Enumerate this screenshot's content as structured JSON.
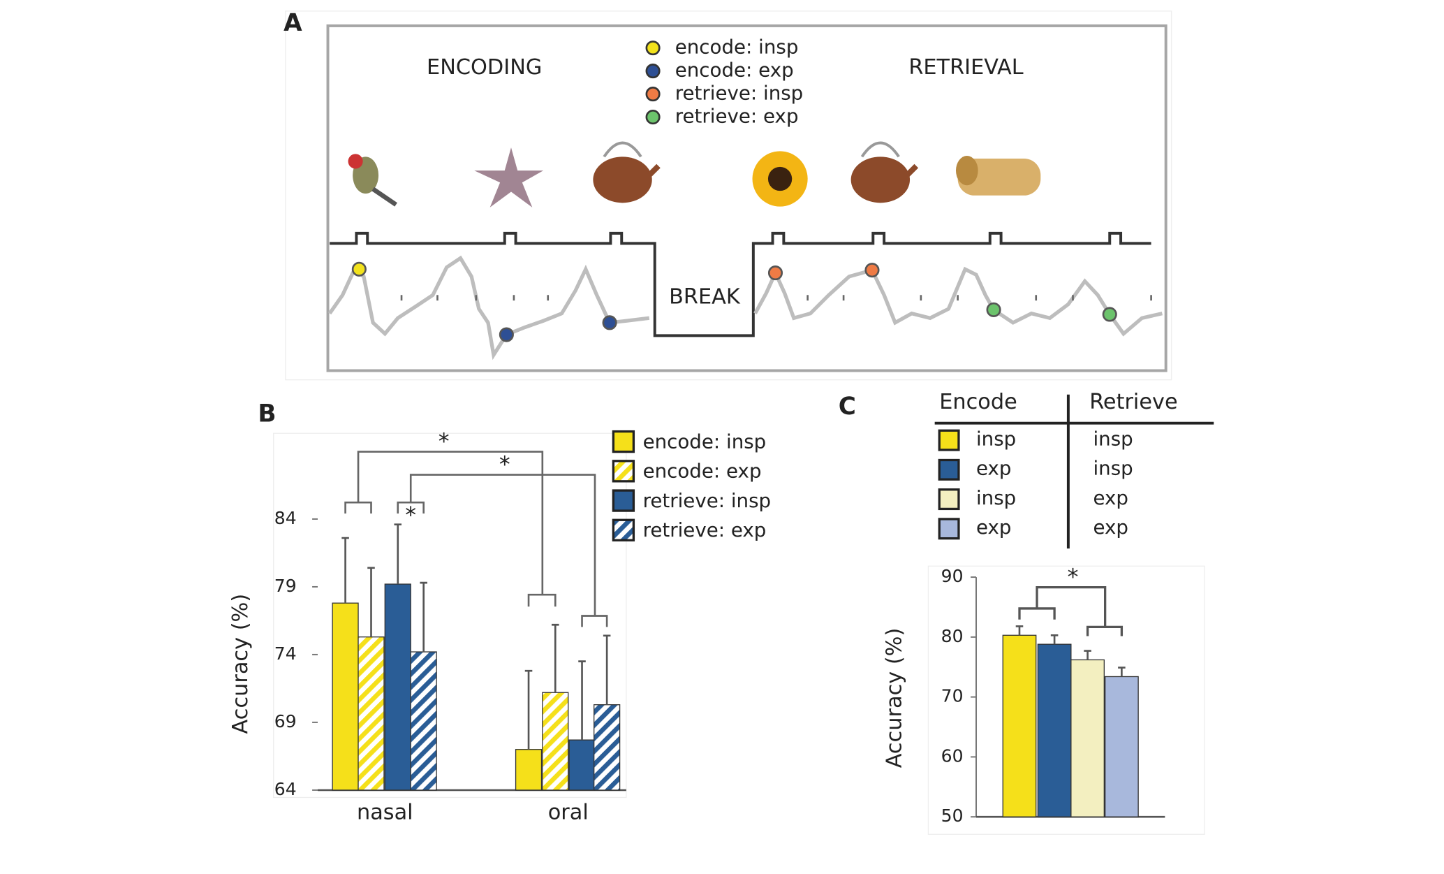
{
  "panel_a": {
    "label": "A",
    "phases": [
      "ENCODING",
      "RETRIEVAL"
    ],
    "break_label": "BREAK",
    "legend": [
      {
        "label": "encode: insp",
        "color": "#f2e21c"
      },
      {
        "label": "encode: exp",
        "color": "#2e4f94"
      },
      {
        "label": "retrieve: insp",
        "color": "#ef7b45"
      },
      {
        "label": "retrieve: exp",
        "color": "#6cc36c"
      }
    ]
  },
  "chart_data": [
    {
      "type": "bar",
      "panel_label": "B",
      "y_label": "Accuracy (%)",
      "categories": [
        "nasal",
        "oral"
      ],
      "ylim": [
        64,
        90
      ],
      "yticks": [
        64,
        69,
        74,
        79,
        84
      ],
      "annotations": [
        "*",
        "*",
        "*"
      ],
      "series": [
        {
          "name": "encode: insp",
          "color": "#f5e01a",
          "hatch": false,
          "values": [
            77.8,
            67.0
          ],
          "errors": [
            4.8,
            5.8
          ]
        },
        {
          "name": "encode: exp",
          "color": "#f5e01a",
          "hatch": true,
          "values": [
            75.3,
            71.2
          ],
          "errors": [
            5.1,
            5.0
          ]
        },
        {
          "name": "retrieve: insp",
          "color": "#2a5d96",
          "hatch": false,
          "values": [
            79.2,
            67.7
          ],
          "errors": [
            4.4,
            5.8
          ]
        },
        {
          "name": "retrieve: exp",
          "color": "#2a5d96",
          "hatch": true,
          "values": [
            74.2,
            70.3
          ],
          "errors": [
            5.1,
            5.1
          ]
        }
      ]
    },
    {
      "type": "bar",
      "panel_label": "C",
      "y_label": "Accuracy (%)",
      "categories": [
        null
      ],
      "ylim": [
        50,
        90
      ],
      "yticks": [
        50,
        60,
        70,
        80,
        90
      ],
      "annotations": [
        "*"
      ],
      "legend_table": {
        "headers": [
          "Encode",
          "Retrieve"
        ],
        "rows": [
          [
            "insp",
            "insp"
          ],
          [
            "exp",
            "insp"
          ],
          [
            "insp",
            "exp"
          ],
          [
            "exp",
            "exp"
          ]
        ]
      },
      "series": [
        {
          "color": "#f5e01a",
          "values": [
            80.3
          ],
          "errors": [
            1.5
          ]
        },
        {
          "color": "#2a5d96",
          "values": [
            78.8
          ],
          "errors": [
            1.5
          ]
        },
        {
          "color": "#f3efc0",
          "values": [
            76.2
          ],
          "errors": [
            1.5
          ]
        },
        {
          "color": "#a8b8dc",
          "values": [
            73.4
          ],
          "errors": [
            1.5
          ]
        }
      ]
    }
  ]
}
